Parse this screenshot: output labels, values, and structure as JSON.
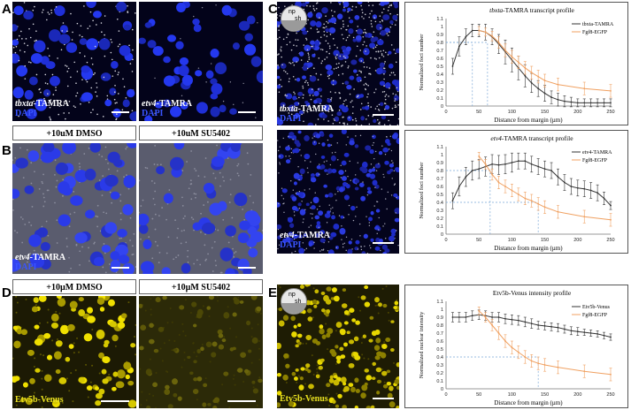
{
  "panels": {
    "A": {
      "letter": "A",
      "left_caption": {
        "gene": "tbxta",
        "probe": "-TAMRA",
        "stain": "DAPI"
      },
      "right_caption": {
        "gene": "etv4",
        "probe": "-TAMRA",
        "stain": "DAPI"
      }
    },
    "B": {
      "letter": "B",
      "header_left": "+10uM DMSO",
      "header_right": "+10uM SU5402",
      "caption": {
        "gene": "etv4",
        "probe": "-TAMRA",
        "stain": "DAPI"
      }
    },
    "C": {
      "letter": "C",
      "embryo_np": "np",
      "embryo_sh": "sh",
      "top_caption": {
        "gene": "tbxta",
        "probe": "-TAMRA",
        "stain": "DAPI"
      },
      "bottom_caption": {
        "gene": "etv4",
        "probe": "-TAMRA",
        "stain": "DAPI"
      }
    },
    "D": {
      "letter": "D",
      "header_left": "+10µM DMSO",
      "header_right": "+10µM SU5402",
      "caption": "Etv5b-Venus"
    },
    "E": {
      "letter": "E",
      "embryo_np": "np",
      "embryo_sh": "sh",
      "caption": "Etv5b-Venus"
    }
  },
  "chart_data": [
    {
      "type": "line",
      "title_gene": "tbxta",
      "title_rest": "-TAMRA transcript profile",
      "xlabel": "Distance from margin (µm)",
      "ylabel": "Normalized foci number",
      "xlim": [
        0,
        250
      ],
      "ylim": [
        0,
        1.1
      ],
      "xticks": [
        0,
        50,
        100,
        150,
        200,
        250
      ],
      "yticks": [
        0,
        0.1,
        0.2,
        0.3,
        0.4,
        0.5,
        0.6,
        0.7,
        0.8,
        0.9,
        1,
        1.1
      ],
      "legend_position": "top-right",
      "series": [
        {
          "name": "tbxta-TAMRA",
          "color": "#333333",
          "x": [
            10,
            20,
            30,
            40,
            50,
            60,
            70,
            80,
            90,
            100,
            110,
            120,
            130,
            140,
            150,
            160,
            170,
            180,
            190,
            200,
            210,
            220,
            230,
            240,
            250
          ],
          "y": [
            0.5,
            0.75,
            0.87,
            0.95,
            0.95,
            0.93,
            0.87,
            0.78,
            0.68,
            0.58,
            0.48,
            0.38,
            0.29,
            0.22,
            0.16,
            0.11,
            0.08,
            0.06,
            0.05,
            0.04,
            0.04,
            0.04,
            0.04,
            0.04,
            0.04
          ],
          "err": [
            0.1,
            0.12,
            0.1,
            0.08,
            0.08,
            0.1,
            0.1,
            0.12,
            0.15,
            0.15,
            0.15,
            0.14,
            0.12,
            0.1,
            0.1,
            0.08,
            0.08,
            0.07,
            0.06,
            0.05,
            0.05,
            0.05,
            0.05,
            0.05,
            0.05
          ]
        },
        {
          "name": "Fgf8-EGFP",
          "color": "#f0a060",
          "x": [
            50,
            60,
            70,
            80,
            90,
            100,
            110,
            120,
            130,
            140,
            150,
            170,
            210,
            250
          ],
          "y": [
            0.95,
            0.93,
            0.88,
            0.8,
            0.7,
            0.62,
            0.55,
            0.48,
            0.42,
            0.37,
            0.32,
            0.27,
            0.22,
            0.19
          ],
          "err": [
            0.05,
            0.05,
            0.06,
            0.07,
            0.08,
            0.08,
            0.08,
            0.08,
            0.08,
            0.08,
            0.08,
            0.08,
            0.08,
            0.08
          ]
        }
      ],
      "guides": [
        {
          "x": 40,
          "y": 0.8
        },
        {
          "x": 63,
          "y": 0.8
        }
      ]
    },
    {
      "type": "line",
      "title_gene": "etv4",
      "title_rest": "-TAMRA transcript profile",
      "xlabel": "Distance from margin (µm)",
      "ylabel": "Normalized foci number",
      "xlim": [
        0,
        250
      ],
      "ylim": [
        0,
        1.1
      ],
      "xticks": [
        0,
        50,
        100,
        150,
        200,
        250
      ],
      "yticks": [
        0,
        0.1,
        0.2,
        0.3,
        0.4,
        0.5,
        0.6,
        0.7,
        0.8,
        0.9,
        1,
        1.1
      ],
      "legend_position": "top-right",
      "series": [
        {
          "name": "etv4-TAMRA",
          "color": "#333333",
          "x": [
            10,
            20,
            30,
            40,
            50,
            60,
            70,
            80,
            90,
            100,
            110,
            120,
            130,
            140,
            150,
            160,
            170,
            180,
            190,
            200,
            210,
            220,
            230,
            240,
            250
          ],
          "y": [
            0.42,
            0.6,
            0.72,
            0.8,
            0.82,
            0.85,
            0.88,
            0.87,
            0.88,
            0.9,
            0.92,
            0.92,
            0.88,
            0.85,
            0.82,
            0.8,
            0.72,
            0.65,
            0.6,
            0.58,
            0.57,
            0.55,
            0.52,
            0.45,
            0.36
          ],
          "err": [
            0.1,
            0.12,
            0.12,
            0.12,
            0.12,
            0.12,
            0.12,
            0.12,
            0.12,
            0.12,
            0.1,
            0.1,
            0.1,
            0.1,
            0.1,
            0.1,
            0.1,
            0.1,
            0.1,
            0.1,
            0.1,
            0.1,
            0.1,
            0.08,
            0.05
          ]
        },
        {
          "name": "Fgf8-EGFP",
          "color": "#f0a060",
          "x": [
            50,
            60,
            70,
            80,
            90,
            100,
            110,
            120,
            130,
            140,
            150,
            170,
            210,
            250
          ],
          "y": [
            0.98,
            0.88,
            0.75,
            0.65,
            0.6,
            0.55,
            0.5,
            0.45,
            0.42,
            0.38,
            0.34,
            0.28,
            0.22,
            0.18
          ],
          "err": [
            0.05,
            0.06,
            0.07,
            0.08,
            0.08,
            0.08,
            0.08,
            0.08,
            0.08,
            0.08,
            0.08,
            0.08,
            0.08,
            0.08
          ]
        }
      ],
      "guides": [
        {
          "x": 67,
          "y": 0.8
        },
        {
          "x": 140,
          "y": 0.4
        }
      ]
    },
    {
      "type": "line",
      "title_gene": "",
      "title_rest": "Etv5b-Venus intensity profile",
      "xlabel": "Distance from margin (µm)",
      "ylabel": "Normalized nuclear intensity",
      "xlim": [
        0,
        250
      ],
      "ylim": [
        0,
        1.1
      ],
      "xticks": [
        0,
        50,
        100,
        150,
        200,
        250
      ],
      "yticks": [
        0,
        0.1,
        0.2,
        0.3,
        0.4,
        0.5,
        0.6,
        0.7,
        0.8,
        0.9,
        1,
        1.1
      ],
      "legend_position": "top-right",
      "series": [
        {
          "name": "Etv5b-Venus",
          "color": "#333333",
          "x": [
            10,
            20,
            30,
            40,
            50,
            60,
            70,
            80,
            90,
            100,
            110,
            120,
            130,
            140,
            150,
            160,
            170,
            180,
            190,
            200,
            210,
            220,
            230,
            240,
            250
          ],
          "y": [
            0.9,
            0.9,
            0.9,
            0.92,
            0.93,
            0.92,
            0.9,
            0.9,
            0.88,
            0.87,
            0.86,
            0.84,
            0.82,
            0.8,
            0.79,
            0.78,
            0.77,
            0.75,
            0.73,
            0.72,
            0.71,
            0.7,
            0.69,
            0.67,
            0.65
          ],
          "err": [
            0.06,
            0.06,
            0.06,
            0.06,
            0.06,
            0.06,
            0.06,
            0.06,
            0.06,
            0.06,
            0.06,
            0.06,
            0.06,
            0.05,
            0.05,
            0.05,
            0.05,
            0.05,
            0.05,
            0.05,
            0.04,
            0.04,
            0.04,
            0.04,
            0.04
          ]
        },
        {
          "name": "Fgf8-EGFP",
          "color": "#f0a060",
          "x": [
            50,
            60,
            70,
            80,
            90,
            100,
            110,
            120,
            130,
            140,
            150,
            170,
            210,
            250
          ],
          "y": [
            0.98,
            0.9,
            0.8,
            0.7,
            0.6,
            0.52,
            0.46,
            0.4,
            0.35,
            0.32,
            0.3,
            0.27,
            0.22,
            0.18
          ],
          "err": [
            0.05,
            0.06,
            0.07,
            0.08,
            0.08,
            0.08,
            0.08,
            0.08,
            0.08,
            0.08,
            0.08,
            0.08,
            0.08,
            0.08
          ]
        }
      ],
      "guides": [
        {
          "x": 140,
          "y": 0.4
        }
      ]
    }
  ]
}
